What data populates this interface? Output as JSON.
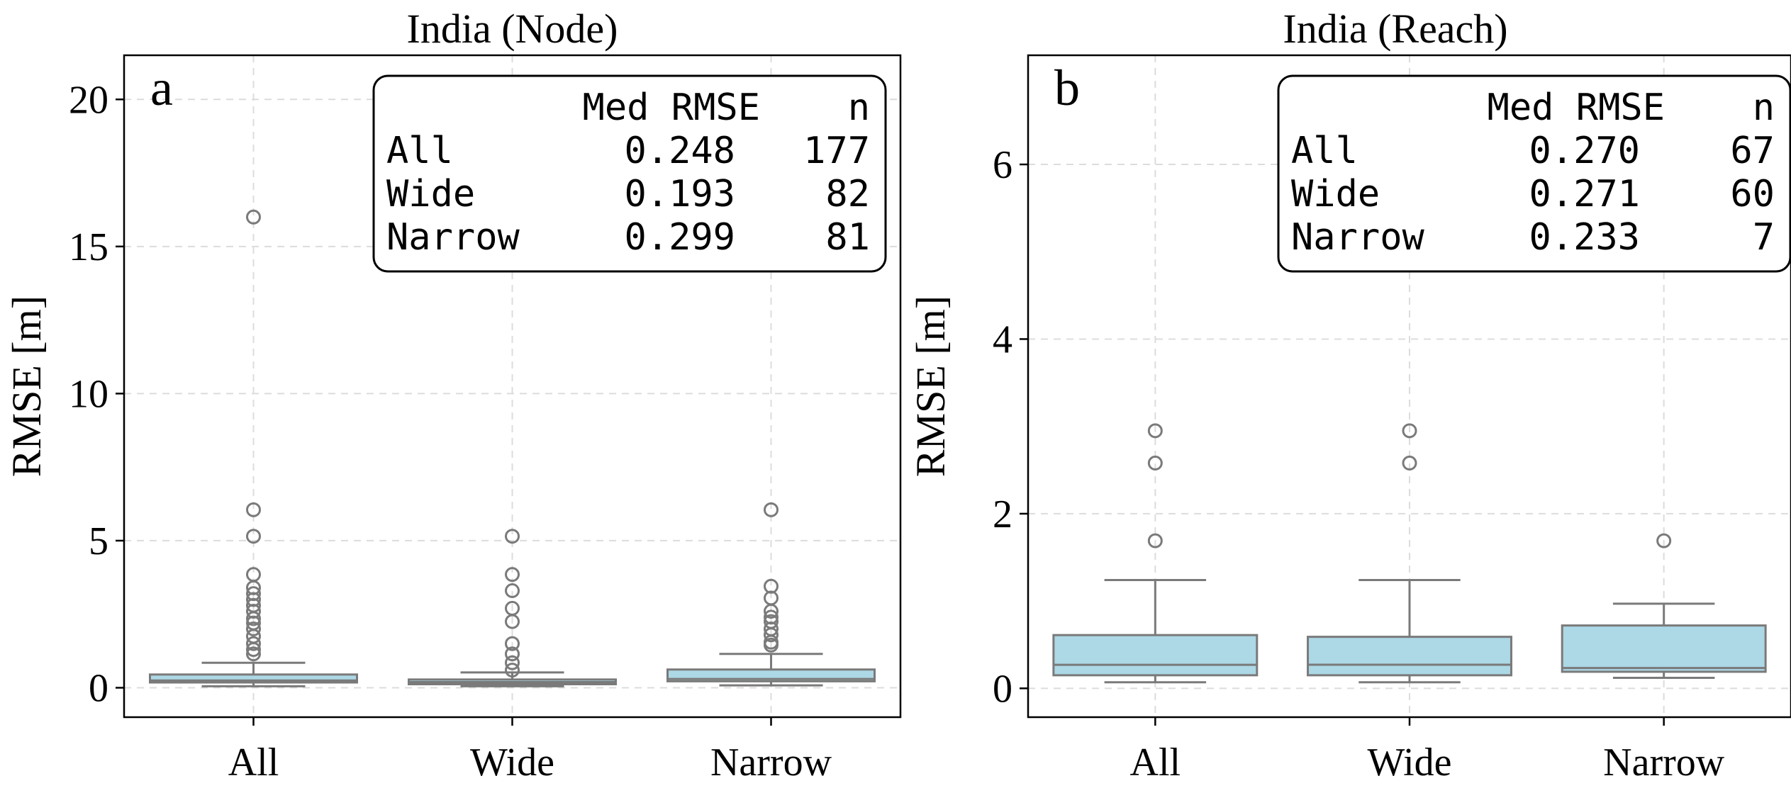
{
  "chart_data": [
    {
      "type": "box",
      "panel_label": "a",
      "title": "India (Node)",
      "ylabel": "RMSE [m]",
      "xlabel": "",
      "ylim": [
        -1,
        21.5
      ],
      "yticks": [
        0,
        5,
        10,
        15,
        20
      ],
      "categories": [
        "All",
        "Wide",
        "Narrow"
      ],
      "boxes": [
        {
          "q1": 0.18,
          "median": 0.248,
          "q3": 0.45,
          "whisker_low": 0.05,
          "whisker_high": 0.85,
          "fliers": [
            1.15,
            1.3,
            1.5,
            1.75,
            2.0,
            2.2,
            2.35,
            2.6,
            2.8,
            3.0,
            3.2,
            3.4,
            3.85,
            5.15,
            6.05,
            16.0
          ]
        },
        {
          "q1": 0.12,
          "median": 0.193,
          "q3": 0.28,
          "whisker_low": 0.05,
          "whisker_high": 0.52,
          "fliers": [
            0.6,
            0.85,
            1.15,
            1.5,
            2.25,
            2.7,
            3.3,
            3.85,
            5.15
          ]
        },
        {
          "q1": 0.22,
          "median": 0.299,
          "q3": 0.62,
          "whisker_low": 0.08,
          "whisker_high": 1.15,
          "fliers": [
            1.45,
            1.55,
            1.8,
            2.0,
            2.25,
            2.4,
            2.6,
            3.05,
            3.45,
            6.05
          ]
        }
      ],
      "legend": {
        "placement": "top-right",
        "header": [
          "",
          "Med RMSE",
          "n"
        ],
        "rows": [
          [
            "All",
            "0.248",
            "177"
          ],
          [
            "Wide",
            "0.193",
            "82"
          ],
          [
            "Narrow",
            "0.299",
            "81"
          ]
        ]
      },
      "grid": true
    },
    {
      "type": "box",
      "panel_label": "b",
      "title": "India (Reach)",
      "ylabel": "RMSE [m]",
      "xlabel": "",
      "ylim": [
        -0.33,
        7.25
      ],
      "yticks": [
        0,
        2,
        4,
        6
      ],
      "categories": [
        "All",
        "Wide",
        "Narrow"
      ],
      "boxes": [
        {
          "q1": 0.15,
          "median": 0.27,
          "q3": 0.61,
          "whisker_low": 0.07,
          "whisker_high": 1.24,
          "fliers": [
            1.69,
            2.58,
            2.95
          ]
        },
        {
          "q1": 0.15,
          "median": 0.271,
          "q3": 0.59,
          "whisker_low": 0.07,
          "whisker_high": 1.24,
          "fliers": [
            2.58,
            2.95
          ]
        },
        {
          "q1": 0.19,
          "median": 0.233,
          "q3": 0.72,
          "whisker_low": 0.12,
          "whisker_high": 0.97,
          "fliers": [
            1.69
          ]
        }
      ],
      "legend": {
        "placement": "top-right",
        "header": [
          "",
          "Med RMSE",
          "n"
        ],
        "rows": [
          [
            "All",
            "0.270",
            "67"
          ],
          [
            "Wide",
            "0.271",
            "60"
          ],
          [
            "Narrow",
            "0.233",
            "7"
          ]
        ]
      },
      "grid": true
    }
  ]
}
